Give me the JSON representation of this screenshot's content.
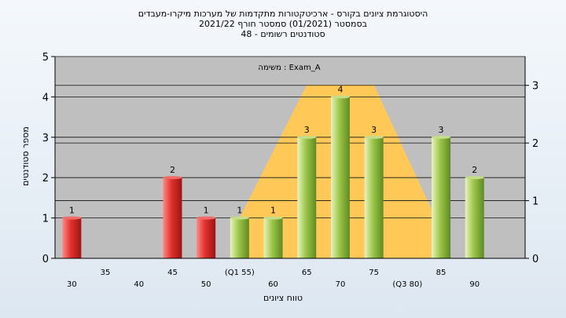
{
  "chart_data": {
    "type": "bar",
    "title_lines": [
      "היסטוגרמת ציונים בקורס - ארכיטקטורות מתקדמות של מערכות מיקרו-מעבדים",
      "בסמסטר  (01/2021)  סמסטר חורף  2021/22",
      "סטודנטים רשומים - 48"
    ],
    "annotation": "משימה : Exam_A",
    "xlabel": "טווח ציונים",
    "ylabel": "מספר סטודנטים",
    "ylim": [
      0,
      5
    ],
    "y_ticks": [
      0,
      1,
      2,
      3,
      4,
      5
    ],
    "y2lim": [
      0,
      3.5
    ],
    "y2_ticks": [
      0,
      1,
      2,
      3
    ],
    "x_tick_labels": [
      {
        "x": 30,
        "label": "30",
        "row": 2
      },
      {
        "x": 35,
        "label": "35",
        "row": 1
      },
      {
        "x": 40,
        "label": "40",
        "row": 2
      },
      {
        "x": 45,
        "label": "45",
        "row": 1
      },
      {
        "x": 50,
        "label": "50",
        "row": 2
      },
      {
        "x": 55,
        "label": "(Q1 55)",
        "row": 1
      },
      {
        "x": 60,
        "label": "60",
        "row": 2
      },
      {
        "x": 65,
        "label": "65",
        "row": 1
      },
      {
        "x": 70,
        "label": "70",
        "row": 2
      },
      {
        "x": 75,
        "label": "75",
        "row": 1
      },
      {
        "x": 80,
        "label": "(Q3 80)",
        "row": 2
      },
      {
        "x": 85,
        "label": "85",
        "row": 1
      },
      {
        "x": 90,
        "label": "90",
        "row": 2
      }
    ],
    "bars": [
      {
        "x": 30,
        "value": 1,
        "color": "red"
      },
      {
        "x": 45,
        "value": 2,
        "color": "red"
      },
      {
        "x": 50,
        "value": 1,
        "color": "red"
      },
      {
        "x": 55,
        "value": 1,
        "color": "green"
      },
      {
        "x": 60,
        "value": 1,
        "color": "green"
      },
      {
        "x": 65,
        "value": 3,
        "color": "green"
      },
      {
        "x": 70,
        "value": 4,
        "color": "green"
      },
      {
        "x": 75,
        "value": 3,
        "color": "green"
      },
      {
        "x": 85,
        "value": 3,
        "color": "green"
      },
      {
        "x": 90,
        "value": 2,
        "color": "green"
      }
    ],
    "area_band": {
      "points": [
        [
          55,
          1
        ],
        [
          65,
          4.3
        ],
        [
          75,
          4.3
        ],
        [
          85,
          0.7
        ]
      ],
      "color": "#ffc857"
    },
    "grid": true,
    "colors": {
      "plot_bg": "#bfbfbf",
      "bar_red": "#e0302e",
      "bar_green": "#93be3c",
      "band": "#ffc857"
    }
  }
}
